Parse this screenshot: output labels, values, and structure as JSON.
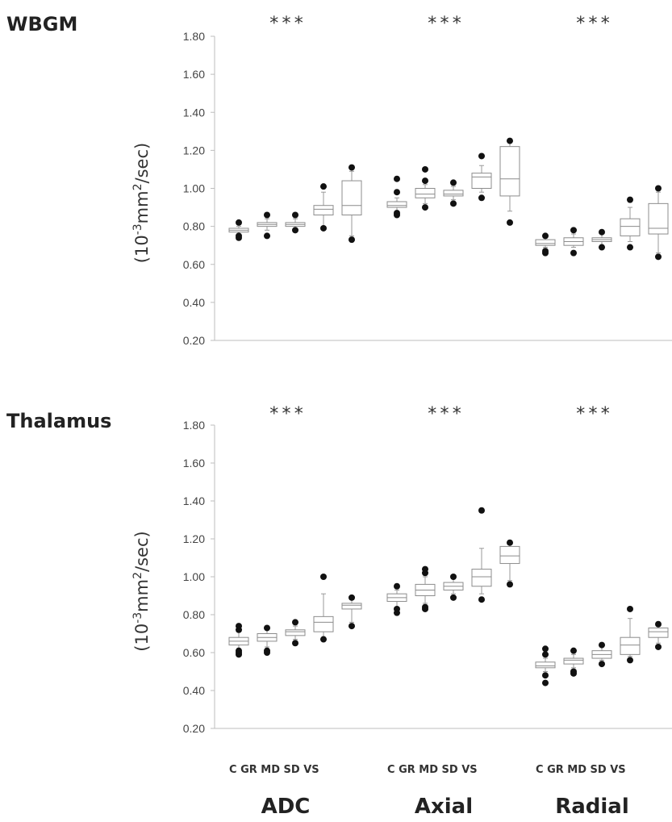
{
  "chart_data": [
    {
      "type": "box",
      "title": "WBGM",
      "ylabel": "(10-3mm2/sec)",
      "ylabel_base": "(10",
      "ylabel_exp1": "-3",
      "ylabel_mid": "mm",
      "ylabel_exp2": "2",
      "ylabel_end": "/sec)",
      "ylim": [
        0.2,
        1.8
      ],
      "yticks": [
        "0.20",
        "0.40",
        "0.60",
        "0.80",
        "1.00",
        "1.20",
        "1.40",
        "1.60",
        "1.80"
      ],
      "measures": [
        "ADC",
        "Axial",
        "Radial"
      ],
      "groups": [
        "C",
        "GR",
        "MD",
        "SD",
        "VS"
      ],
      "significance": [
        "***",
        "***",
        "***"
      ],
      "boxes": [
        [
          {
            "lo": 0.76,
            "q1": 0.77,
            "med": 0.78,
            "q3": 0.79,
            "hi": 0.8,
            "out": [
              0.74,
              0.75,
              0.82
            ]
          },
          {
            "lo": 0.78,
            "q1": 0.8,
            "med": 0.81,
            "q3": 0.82,
            "hi": 0.84,
            "out": [
              0.75,
              0.86
            ]
          },
          {
            "lo": 0.79,
            "q1": 0.8,
            "med": 0.81,
            "q3": 0.82,
            "hi": 0.84,
            "out": [
              0.78,
              0.86
            ]
          },
          {
            "lo": 0.8,
            "q1": 0.86,
            "med": 0.89,
            "q3": 0.91,
            "hi": 0.98,
            "out": [
              0.79,
              1.01
            ]
          },
          {
            "lo": 0.75,
            "q1": 0.86,
            "med": 0.91,
            "q3": 1.04,
            "hi": 1.09,
            "out": [
              0.73,
              1.11
            ]
          }
        ],
        [
          {
            "lo": 0.88,
            "q1": 0.9,
            "med": 0.91,
            "q3": 0.93,
            "hi": 0.95,
            "out": [
              0.86,
              0.87,
              0.98,
              1.05
            ]
          },
          {
            "lo": 0.92,
            "q1": 0.95,
            "med": 0.97,
            "q3": 1.0,
            "hi": 1.02,
            "out": [
              0.9,
              1.04,
              1.1
            ]
          },
          {
            "lo": 0.94,
            "q1": 0.96,
            "med": 0.97,
            "q3": 0.99,
            "hi": 1.01,
            "out": [
              0.92,
              1.03
            ]
          },
          {
            "lo": 0.98,
            "q1": 1.0,
            "med": 1.06,
            "q3": 1.08,
            "hi": 1.12,
            "out": [
              0.95,
              1.17
            ]
          },
          {
            "lo": 0.88,
            "q1": 0.96,
            "med": 1.05,
            "q3": 1.22,
            "hi": 1.24,
            "out": [
              0.82,
              1.25
            ]
          }
        ],
        [
          {
            "lo": 0.69,
            "q1": 0.7,
            "med": 0.71,
            "q3": 0.73,
            "hi": 0.74,
            "out": [
              0.66,
              0.67,
              0.75
            ]
          },
          {
            "lo": 0.69,
            "q1": 0.7,
            "med": 0.72,
            "q3": 0.74,
            "hi": 0.76,
            "out": [
              0.66,
              0.78
            ]
          },
          {
            "lo": 0.7,
            "q1": 0.72,
            "med": 0.73,
            "q3": 0.74,
            "hi": 0.76,
            "out": [
              0.69,
              0.77
            ]
          },
          {
            "lo": 0.72,
            "q1": 0.75,
            "med": 0.8,
            "q3": 0.84,
            "hi": 0.9,
            "out": [
              0.69,
              0.94
            ]
          },
          {
            "lo": 0.66,
            "q1": 0.76,
            "med": 0.79,
            "q3": 0.92,
            "hi": 0.98,
            "out": [
              0.64,
              1.0
            ]
          }
        ]
      ]
    },
    {
      "type": "box",
      "title": "Thalamus",
      "ylabel": "(10-3mm2/sec)",
      "ylabel_base": "(10",
      "ylabel_exp1": "-3",
      "ylabel_mid": "mm",
      "ylabel_exp2": "2",
      "ylabel_end": "/sec)",
      "ylim": [
        0.2,
        1.8
      ],
      "yticks": [
        "0.20",
        "0.40",
        "0.60",
        "0.80",
        "1.00",
        "1.20",
        "1.40",
        "1.60",
        "1.80"
      ],
      "measures": [
        "ADC",
        "Axial",
        "Radial"
      ],
      "groups": [
        "C",
        "GR",
        "MD",
        "SD",
        "VS"
      ],
      "significance": [
        "***",
        "***",
        "***"
      ],
      "boxes": [
        [
          {
            "lo": 0.62,
            "q1": 0.64,
            "med": 0.66,
            "q3": 0.68,
            "hi": 0.71,
            "out": [
              0.59,
              0.6,
              0.61,
              0.72,
              0.74
            ]
          },
          {
            "lo": 0.63,
            "q1": 0.66,
            "med": 0.68,
            "q3": 0.7,
            "hi": 0.72,
            "out": [
              0.6,
              0.61,
              0.73
            ]
          },
          {
            "lo": 0.67,
            "q1": 0.69,
            "med": 0.71,
            "q3": 0.72,
            "hi": 0.74,
            "out": [
              0.65,
              0.76
            ]
          },
          {
            "lo": 0.68,
            "q1": 0.71,
            "med": 0.76,
            "q3": 0.79,
            "hi": 0.91,
            "out": [
              0.67,
              1.0
            ]
          },
          {
            "lo": 0.76,
            "q1": 0.83,
            "med": 0.85,
            "q3": 0.86,
            "hi": 0.88,
            "out": [
              0.74,
              0.89
            ]
          }
        ],
        [
          {
            "lo": 0.84,
            "q1": 0.87,
            "med": 0.89,
            "q3": 0.91,
            "hi": 0.93,
            "out": [
              0.81,
              0.83,
              0.95
            ]
          },
          {
            "lo": 0.86,
            "q1": 0.9,
            "med": 0.93,
            "q3": 0.96,
            "hi": 1.0,
            "out": [
              0.83,
              0.84,
              1.02,
              1.04
            ]
          },
          {
            "lo": 0.91,
            "q1": 0.93,
            "med": 0.95,
            "q3": 0.97,
            "hi": 0.99,
            "out": [
              0.89,
              1.0
            ]
          },
          {
            "lo": 0.91,
            "q1": 0.95,
            "med": 1.0,
            "q3": 1.04,
            "hi": 1.15,
            "out": [
              0.88,
              1.35
            ]
          },
          {
            "lo": 0.98,
            "q1": 1.07,
            "med": 1.11,
            "q3": 1.16,
            "hi": 1.17,
            "out": [
              0.96,
              1.18
            ]
          }
        ],
        [
          {
            "lo": 0.5,
            "q1": 0.52,
            "med": 0.53,
            "q3": 0.55,
            "hi": 0.57,
            "out": [
              0.44,
              0.48,
              0.59,
              0.62
            ]
          },
          {
            "lo": 0.52,
            "q1": 0.54,
            "med": 0.56,
            "q3": 0.57,
            "hi": 0.59,
            "out": [
              0.49,
              0.5,
              0.61
            ]
          },
          {
            "lo": 0.56,
            "q1": 0.57,
            "med": 0.59,
            "q3": 0.61,
            "hi": 0.63,
            "out": [
              0.54,
              0.64
            ]
          },
          {
            "lo": 0.58,
            "q1": 0.59,
            "med": 0.64,
            "q3": 0.68,
            "hi": 0.78,
            "out": [
              0.56,
              0.83
            ]
          },
          {
            "lo": 0.65,
            "q1": 0.68,
            "med": 0.71,
            "q3": 0.73,
            "hi": 0.74,
            "out": [
              0.63,
              0.75
            ]
          }
        ]
      ]
    }
  ]
}
